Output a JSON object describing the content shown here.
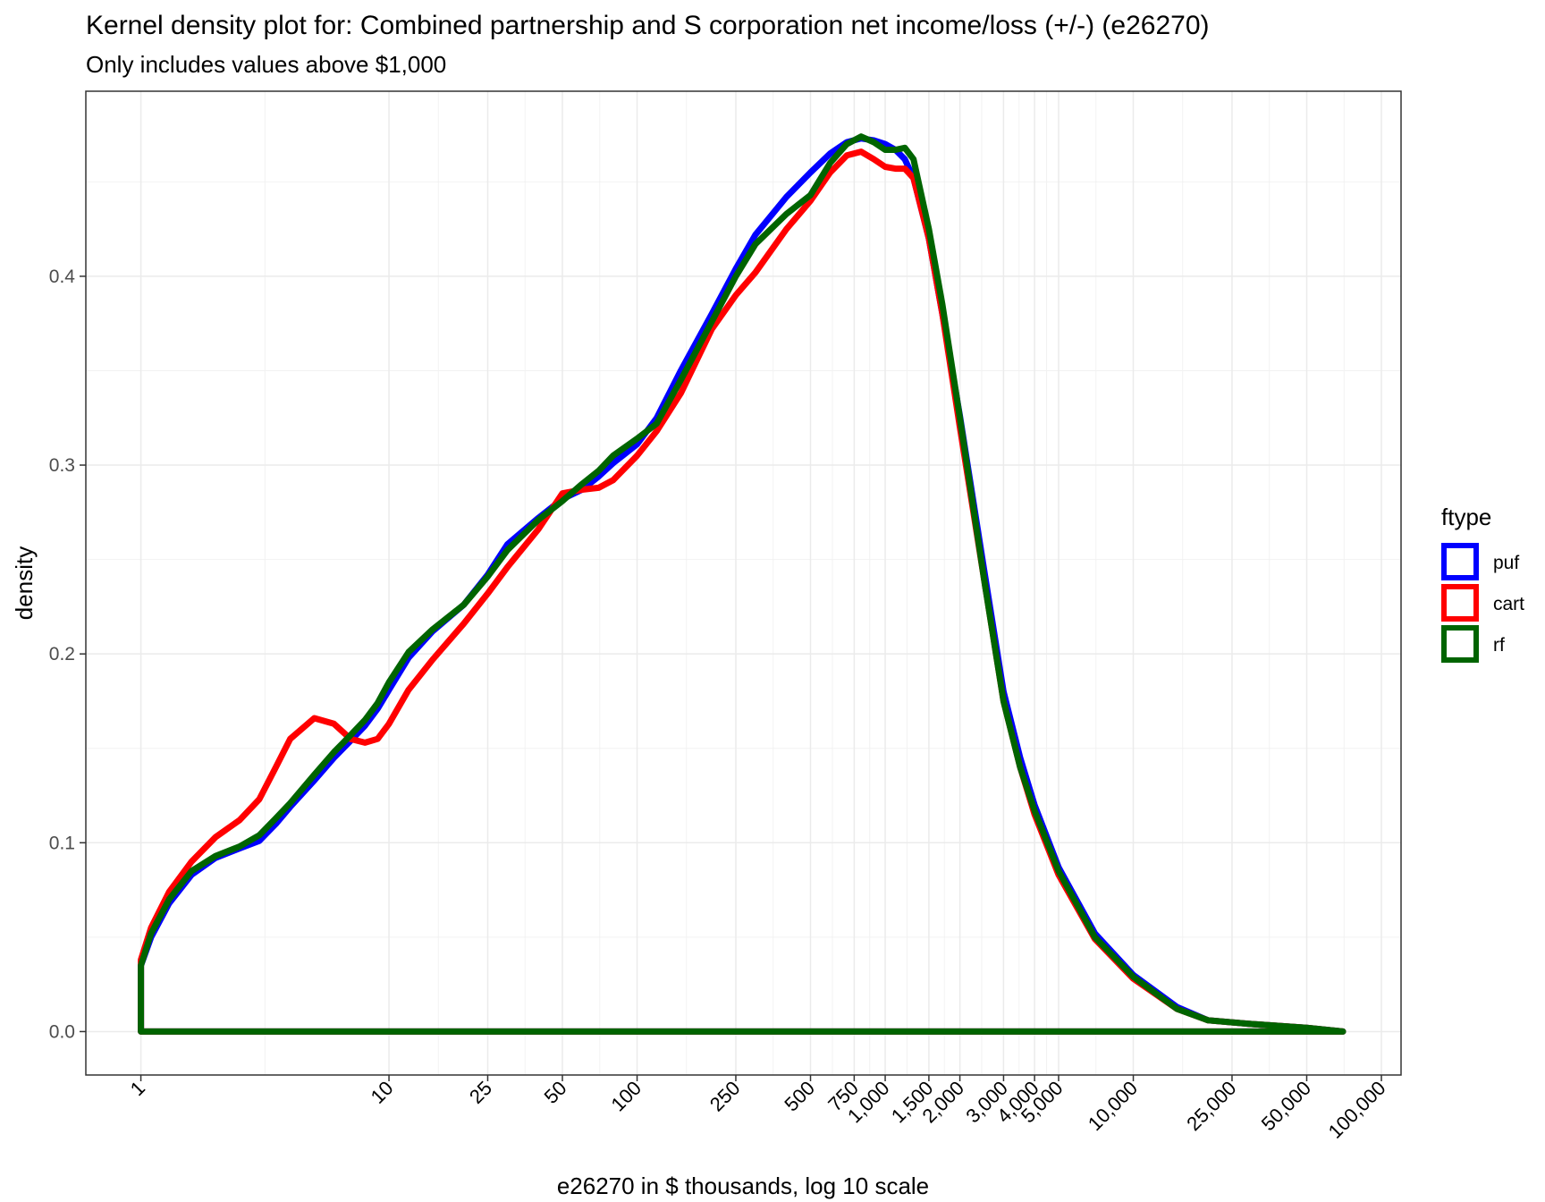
{
  "chart_data": {
    "type": "line",
    "title": "Kernel density plot for: Combined partnership and S corporation net income/loss (+/-) (e26270)",
    "subtitle": "Only includes values above $1,000",
    "xlabel": "e26270 in $ thousands, log 10 scale",
    "ylabel": "density",
    "x_scale": "log10",
    "xlim": [
      0.6,
      120000
    ],
    "ylim": [
      -0.023,
      0.498
    ],
    "x_ticks": [
      1,
      10,
      25,
      50,
      100,
      250,
      500,
      750,
      1000,
      1500,
      2000,
      3000,
      4000,
      5000,
      10000,
      25000,
      50000,
      100000
    ],
    "x_tick_labels": [
      "1",
      "10",
      "25",
      "50",
      "100",
      "250",
      "500",
      "750",
      "1,000",
      "1,500",
      "2,000",
      "3,000",
      "4,000",
      "5,000",
      "10,000",
      "25,000",
      "50,000",
      "100,000"
    ],
    "y_ticks": [
      0.0,
      0.1,
      0.2,
      0.3,
      0.4
    ],
    "y_tick_labels": [
      "0.0",
      "0.1",
      "0.2",
      "0.3",
      "0.4"
    ],
    "grid": true,
    "legend": {
      "title": "ftype",
      "placement": "right"
    },
    "series": [
      {
        "name": "puf",
        "color": "#0000FF",
        "x": [
          1,
          1.1,
          1.3,
          1.6,
          2,
          2.5,
          3,
          3.5,
          4,
          5,
          6,
          7,
          8,
          9,
          10,
          12,
          15,
          20,
          25,
          30,
          40,
          50,
          60,
          70,
          80,
          100,
          120,
          150,
          200,
          250,
          300,
          400,
          500,
          600,
          700,
          800,
          900,
          1000,
          1100,
          1200,
          1300,
          1500,
          1700,
          2000,
          2500,
          3000,
          3500,
          4000,
          5000,
          7000,
          10000,
          15000,
          20000,
          30000,
          50000,
          70000
        ],
        "y": [
          0.035,
          0.05,
          0.068,
          0.083,
          0.092,
          0.097,
          0.101,
          0.11,
          0.119,
          0.133,
          0.145,
          0.154,
          0.162,
          0.171,
          0.181,
          0.198,
          0.212,
          0.226,
          0.242,
          0.258,
          0.272,
          0.282,
          0.287,
          0.294,
          0.301,
          0.311,
          0.325,
          0.35,
          0.38,
          0.404,
          0.422,
          0.442,
          0.455,
          0.465,
          0.471,
          0.473,
          0.472,
          0.47,
          0.467,
          0.462,
          0.452,
          0.42,
          0.38,
          0.326,
          0.245,
          0.18,
          0.145,
          0.12,
          0.087,
          0.052,
          0.03,
          0.013,
          0.006,
          0.004,
          0.002,
          0.0
        ]
      },
      {
        "name": "cart",
        "color": "#FF0000",
        "x": [
          1,
          1.1,
          1.3,
          1.6,
          2,
          2.5,
          3,
          3.5,
          4,
          5,
          6,
          7,
          8,
          9,
          10,
          12,
          15,
          20,
          25,
          30,
          40,
          50,
          60,
          70,
          80,
          100,
          120,
          150,
          200,
          250,
          300,
          400,
          500,
          600,
          700,
          800,
          900,
          1000,
          1100,
          1200,
          1300,
          1500,
          1700,
          2000,
          2500,
          3000,
          3500,
          4000,
          5000,
          7000,
          10000,
          15000,
          20000,
          30000,
          50000,
          70000
        ],
        "y": [
          0.038,
          0.055,
          0.074,
          0.09,
          0.103,
          0.112,
          0.123,
          0.14,
          0.155,
          0.166,
          0.163,
          0.155,
          0.153,
          0.155,
          0.163,
          0.181,
          0.197,
          0.216,
          0.232,
          0.246,
          0.266,
          0.285,
          0.287,
          0.288,
          0.292,
          0.305,
          0.318,
          0.338,
          0.372,
          0.39,
          0.402,
          0.425,
          0.44,
          0.455,
          0.464,
          0.466,
          0.462,
          0.458,
          0.457,
          0.457,
          0.452,
          0.42,
          0.38,
          0.32,
          0.24,
          0.175,
          0.14,
          0.115,
          0.083,
          0.049,
          0.028,
          0.012,
          0.006,
          0.004,
          0.002,
          0.0
        ]
      },
      {
        "name": "rf",
        "color": "#006400",
        "x": [
          1,
          1.1,
          1.3,
          1.6,
          2,
          2.5,
          3,
          3.5,
          4,
          5,
          6,
          7,
          8,
          9,
          10,
          12,
          15,
          20,
          25,
          30,
          40,
          50,
          60,
          70,
          80,
          100,
          120,
          150,
          200,
          250,
          300,
          400,
          500,
          600,
          700,
          800,
          900,
          1000,
          1100,
          1200,
          1300,
          1500,
          1700,
          2000,
          2500,
          3000,
          3500,
          4000,
          5000,
          7000,
          10000,
          15000,
          20000,
          30000,
          50000,
          70000
        ],
        "y": [
          0.035,
          0.052,
          0.07,
          0.085,
          0.093,
          0.098,
          0.104,
          0.113,
          0.121,
          0.136,
          0.148,
          0.157,
          0.165,
          0.174,
          0.185,
          0.201,
          0.213,
          0.226,
          0.241,
          0.255,
          0.271,
          0.281,
          0.29,
          0.297,
          0.305,
          0.314,
          0.322,
          0.345,
          0.376,
          0.4,
          0.417,
          0.433,
          0.443,
          0.46,
          0.47,
          0.474,
          0.471,
          0.467,
          0.467,
          0.468,
          0.462,
          0.425,
          0.385,
          0.325,
          0.24,
          0.175,
          0.14,
          0.117,
          0.085,
          0.05,
          0.029,
          0.012,
          0.006,
          0.004,
          0.002,
          0.0
        ]
      }
    ]
  }
}
